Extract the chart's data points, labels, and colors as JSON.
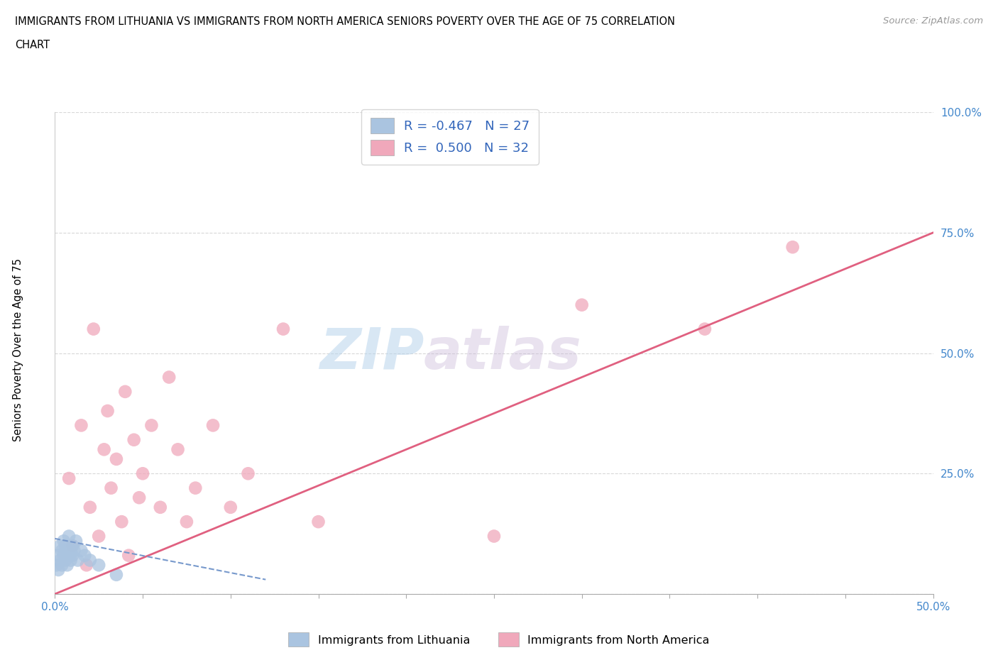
{
  "title_line1": "IMMIGRANTS FROM LITHUANIA VS IMMIGRANTS FROM NORTH AMERICA SENIORS POVERTY OVER THE AGE OF 75 CORRELATION",
  "title_line2": "CHART",
  "source": "Source: ZipAtlas.com",
  "ylabel": "Seniors Poverty Over the Age of 75",
  "xlim": [
    0.0,
    0.5
  ],
  "ylim": [
    0.0,
    1.0
  ],
  "xticks": [
    0.0,
    0.05,
    0.1,
    0.15,
    0.2,
    0.25,
    0.3,
    0.35,
    0.4,
    0.45,
    0.5
  ],
  "xticklabels": [
    "0.0%",
    "",
    "",
    "",
    "",
    "",
    "",
    "",
    "",
    "",
    "50.0%"
  ],
  "yticks": [
    0.0,
    0.25,
    0.5,
    0.75,
    1.0
  ],
  "yticklabels": [
    "",
    "25.0%",
    "50.0%",
    "75.0%",
    "100.0%"
  ],
  "grid_color": "#d8d8d8",
  "legend_r1": "R = -0.467   N = 27",
  "legend_r2": "R =  0.500   N = 32",
  "blue_color": "#aac4e0",
  "pink_color": "#f0a8bb",
  "blue_line_color": "#7799cc",
  "pink_line_color": "#e06080",
  "label1": "Immigrants from Lithuania",
  "label2": "Immigrants from North America",
  "lithuania_x": [
    0.001,
    0.002,
    0.002,
    0.003,
    0.003,
    0.004,
    0.004,
    0.005,
    0.005,
    0.006,
    0.006,
    0.007,
    0.007,
    0.008,
    0.008,
    0.009,
    0.009,
    0.01,
    0.01,
    0.011,
    0.012,
    0.013,
    0.015,
    0.017,
    0.02,
    0.025,
    0.035
  ],
  "lithuania_y": [
    0.06,
    0.08,
    0.05,
    0.07,
    0.1,
    0.06,
    0.09,
    0.08,
    0.11,
    0.07,
    0.1,
    0.09,
    0.06,
    0.08,
    0.12,
    0.09,
    0.07,
    0.1,
    0.08,
    0.09,
    0.11,
    0.07,
    0.09,
    0.08,
    0.07,
    0.06,
    0.04
  ],
  "north_america_x": [
    0.008,
    0.01,
    0.015,
    0.018,
    0.02,
    0.022,
    0.025,
    0.028,
    0.03,
    0.032,
    0.035,
    0.038,
    0.04,
    0.042,
    0.045,
    0.048,
    0.05,
    0.055,
    0.06,
    0.065,
    0.07,
    0.075,
    0.08,
    0.09,
    0.1,
    0.11,
    0.13,
    0.15,
    0.25,
    0.3,
    0.37,
    0.42
  ],
  "north_america_y": [
    0.24,
    0.1,
    0.35,
    0.06,
    0.18,
    0.55,
    0.12,
    0.3,
    0.38,
    0.22,
    0.28,
    0.15,
    0.42,
    0.08,
    0.32,
    0.2,
    0.25,
    0.35,
    0.18,
    0.45,
    0.3,
    0.15,
    0.22,
    0.35,
    0.18,
    0.25,
    0.55,
    0.15,
    0.12,
    0.6,
    0.55,
    0.72
  ],
  "pink_line_x0": 0.0,
  "pink_line_y0": 0.0,
  "pink_line_x1": 0.5,
  "pink_line_y1": 0.75,
  "blue_line_x0": 0.0,
  "blue_line_y0": 0.115,
  "blue_line_x1": 0.12,
  "blue_line_y1": 0.03
}
